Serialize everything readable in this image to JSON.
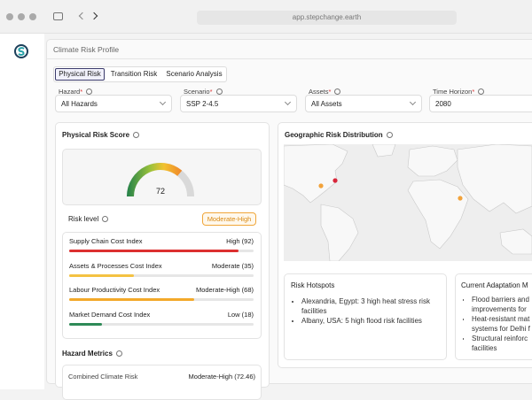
{
  "browser": {
    "url": "app.stepchange.earth"
  },
  "page": {
    "title": "Climate Risk Profile"
  },
  "tabs": [
    "Physical Risk",
    "Transition Risk",
    "Scenario Analysis"
  ],
  "filters": [
    {
      "label": "Hazard",
      "mark": "*",
      "value": "All Hazards"
    },
    {
      "label": "Scenario",
      "mark": "*",
      "value": "SSP 2-4.5"
    },
    {
      "label": "Assets",
      "mark": "*",
      "value": "All Assets"
    },
    {
      "label": "Time Horizon",
      "mark": "*",
      "value": "2080"
    }
  ],
  "risk_score": {
    "title": "Physical Risk Score",
    "value": 72,
    "level_label": "Risk level",
    "level": "Moderate-High",
    "indices": [
      {
        "name": "Supply Chain Cost Index",
        "label": "High (92)",
        "value": 92,
        "color": "#dc2f2f"
      },
      {
        "name": "Assets & Processes Cost Index",
        "label": "Moderate (35)",
        "value": 35,
        "color": "#f4c242"
      },
      {
        "name": "Labour Productivity Cost Index",
        "label": "Moderate-High (68)",
        "value": 68,
        "color": "#f3a92a"
      },
      {
        "name": "Market Demand Cost Index",
        "label": "Low (18)",
        "value": 18,
        "color": "#2e8a57"
      }
    ]
  },
  "hazard_metrics": {
    "title": "Hazard Metrics",
    "rows": [
      {
        "name": "Combined Climate Risk",
        "label": "Moderate-High (72.46)"
      }
    ]
  },
  "geo": {
    "title": "Geographic Risk Distribution"
  },
  "hotspots": {
    "title": "Risk Hotspots",
    "items": [
      "Alexandria, Egypt: 3 high heat stress risk facilities",
      "Albany, USA: 5 high flood risk facilities"
    ]
  },
  "adaptation": {
    "title": "Current Adaptation M",
    "items": [
      "Flood barriers and improvements for",
      "Heat-resistant mat systems for Delhi f",
      "Structural reinforc facilities"
    ]
  }
}
